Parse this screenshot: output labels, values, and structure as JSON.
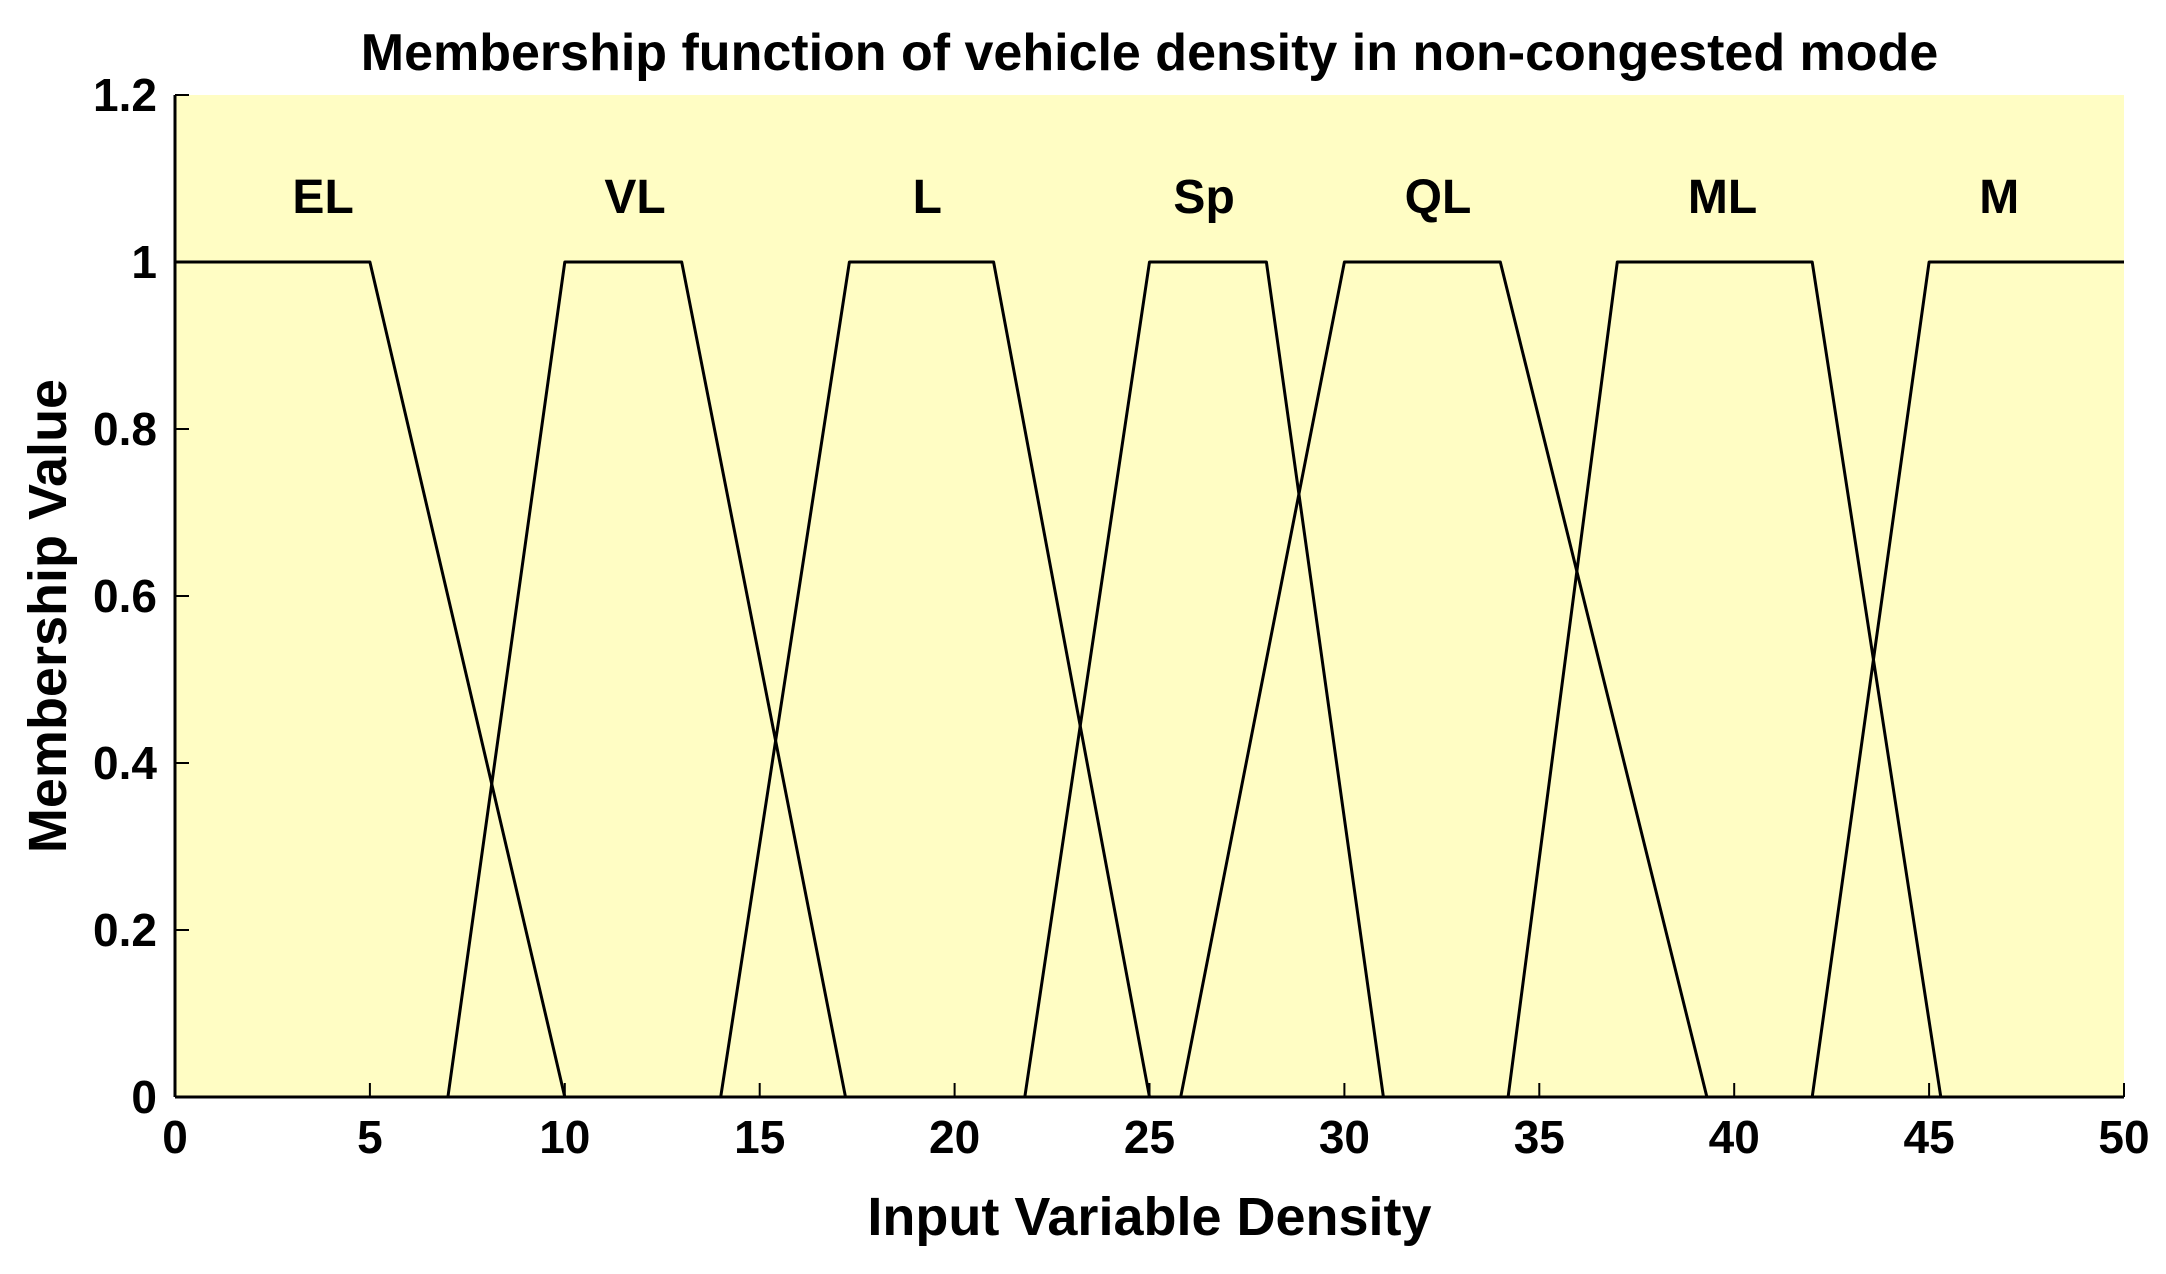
{
  "chart_data": {
    "type": "line",
    "title": "Membership function of vehicle density in non-congested mode",
    "xlabel": "Input Variable Density",
    "ylabel": "Membership Value",
    "xlim": [
      0,
      50
    ],
    "ylim": [
      0,
      1.2
    ],
    "xticks": [
      0,
      5,
      10,
      15,
      20,
      25,
      30,
      35,
      40,
      45,
      50
    ],
    "yticks": [
      0,
      0.2,
      0.4,
      0.6,
      0.8,
      1,
      1.2
    ],
    "xtick_labels": [
      "0",
      "5",
      "10",
      "15",
      "20",
      "25",
      "30",
      "35",
      "40",
      "45",
      "50"
    ],
    "ytick_labels": [
      "0",
      "0.2",
      "0.4",
      "0.6",
      "0.8",
      "1",
      "1.2"
    ],
    "grid": false,
    "background_color": "#fffdc4",
    "line_color": "#000000",
    "series": [
      {
        "name": "EL",
        "label_x": 3.8,
        "x": [
          0,
          5,
          10
        ],
        "y": [
          1,
          1,
          0
        ]
      },
      {
        "name": "VL",
        "label_x": 11.8,
        "x": [
          7,
          10,
          13,
          17.2
        ],
        "y": [
          0,
          1,
          1,
          0
        ]
      },
      {
        "name": "L",
        "label_x": 19.3,
        "x": [
          14,
          17.3,
          21,
          25
        ],
        "y": [
          0,
          1,
          1,
          0
        ]
      },
      {
        "name": "Sp",
        "label_x": 26.4,
        "x": [
          21.8,
          25,
          28,
          31
        ],
        "y": [
          0,
          1,
          1,
          0
        ]
      },
      {
        "name": "QL",
        "label_x": 32.4,
        "x": [
          25.8,
          30,
          34,
          39.3
        ],
        "y": [
          0,
          1,
          1,
          0
        ]
      },
      {
        "name": "ML",
        "label_x": 39.7,
        "x": [
          34.2,
          37,
          42,
          45.3
        ],
        "y": [
          0,
          1,
          1,
          0
        ]
      },
      {
        "name": "M",
        "label_x": 46.8,
        "x": [
          42,
          45,
          50
        ],
        "y": [
          0,
          1,
          1
        ]
      }
    ]
  }
}
